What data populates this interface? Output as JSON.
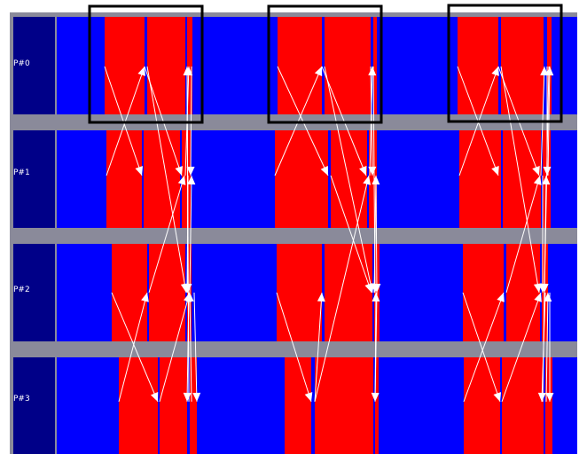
{
  "colors": {
    "background": "#8a8a9a",
    "label_box": "#000088",
    "idle": "#0000ff",
    "busy": "#ff0000",
    "message": "#ffffff",
    "highlight": "#000000"
  },
  "processes": [
    {
      "label": "P#0"
    },
    {
      "label": "P#1"
    },
    {
      "label": "P#2"
    },
    {
      "label": "P#3"
    }
  ],
  "highlighted_phases": 3
}
